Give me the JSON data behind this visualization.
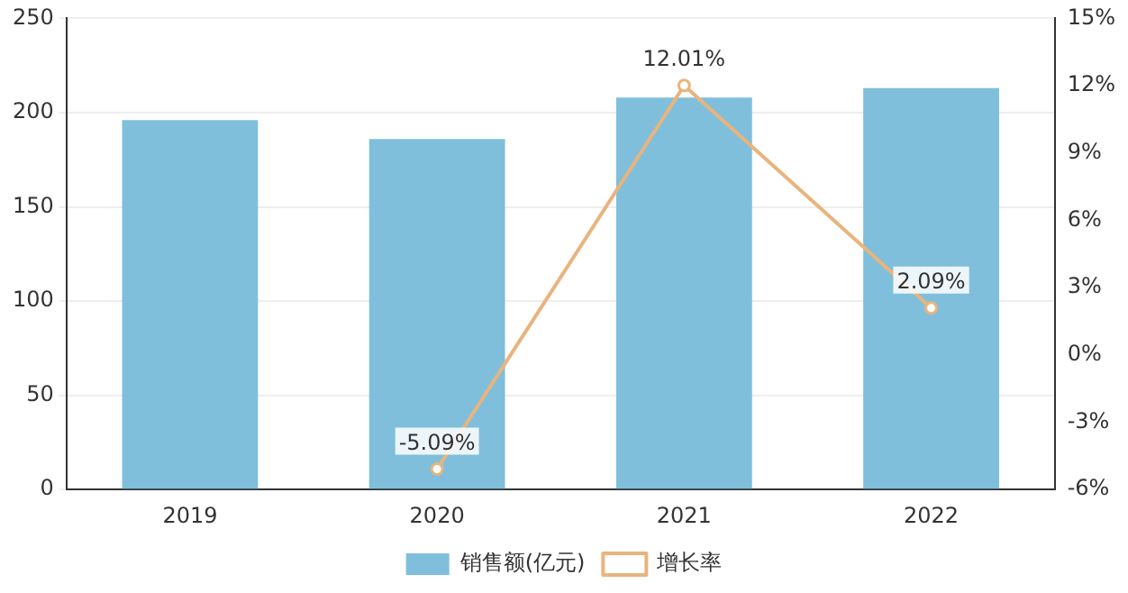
{
  "chart_data": {
    "type": "bar",
    "categories": [
      "2019",
      "2020",
      "2021",
      "2022"
    ],
    "series": [
      {
        "name": "销售额(亿元)",
        "color": "#7fbfdc",
        "values": [
          196,
          186,
          208,
          213
        ]
      },
      {
        "name": "增长率",
        "type": "line",
        "axis": "y2",
        "color": "#e8b47e",
        "values": [
          null,
          -5.09,
          12.01,
          2.09
        ],
        "value_labels": [
          null,
          "-5.09%",
          "12.01%",
          "2.09%"
        ]
      }
    ],
    "ylim": [
      0,
      250
    ],
    "yticks": [
      0,
      50,
      100,
      150,
      200,
      250
    ],
    "y2lim": [
      -6,
      15
    ],
    "y2ticks": [
      {
        "value": -6,
        "label": "-6%"
      },
      {
        "value": -3,
        "label": "-3%"
      },
      {
        "value": 0,
        "label": "0%"
      },
      {
        "value": 3,
        "label": "3%"
      },
      {
        "value": 6,
        "label": "6%"
      },
      {
        "value": 9,
        "label": "9%"
      },
      {
        "value": 12,
        "label": "12%"
      },
      {
        "value": 15,
        "label": "15%"
      }
    ],
    "grid": "y",
    "legend": "bottom",
    "marker": "circle",
    "line_style": "solid"
  }
}
